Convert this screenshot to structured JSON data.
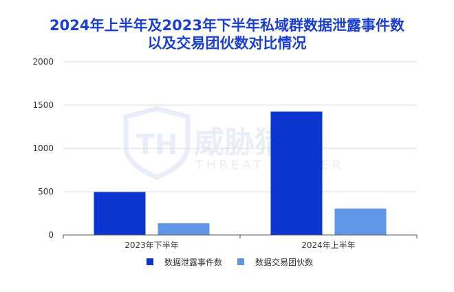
{
  "title_lines": [
    "2024年上半年及2023年下半年私域群数据泄露事件数",
    "以及交易团伙数对比情况"
  ],
  "watermark": {
    "name": "威胁猎人",
    "sub": "THREAT HUNTER"
  },
  "colors": {
    "title": "#1a3fd1",
    "series_1": "#0a35d0",
    "series_2": "#5f97e6",
    "grid": "#d9d9d9",
    "axis": "#555555"
  },
  "chart_data": {
    "type": "bar",
    "categories": [
      "2023年下半年",
      "2024年上半年"
    ],
    "series": [
      {
        "name": "数据泄露事件数",
        "values": [
          496,
          1425
        ]
      },
      {
        "name": "数据交易团伙数",
        "values": [
          135,
          305
        ]
      }
    ],
    "ylim": [
      0,
      2000
    ],
    "yticks": [
      0,
      500,
      1000,
      1500,
      2000
    ],
    "grid": true,
    "legend_position": "bottom"
  }
}
